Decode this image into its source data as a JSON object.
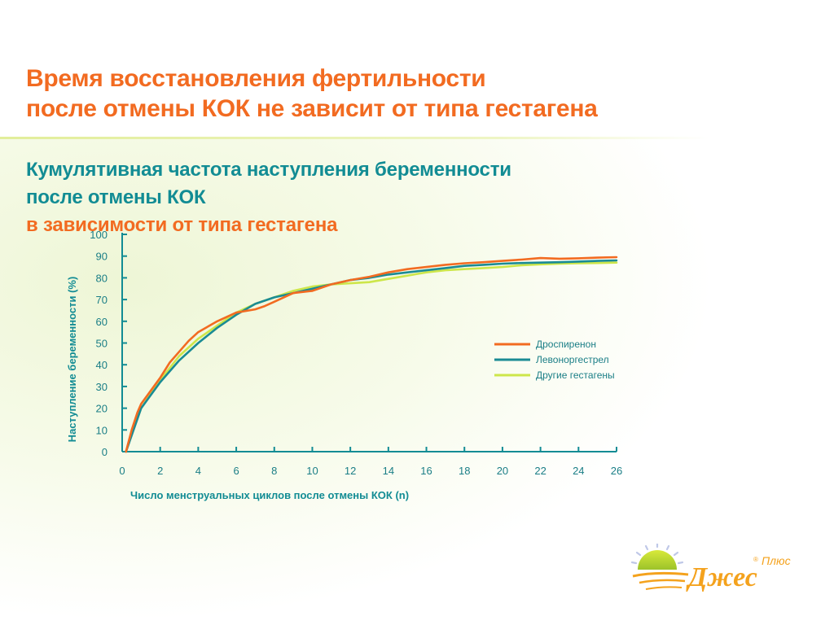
{
  "header": {
    "title_line1": "Время восстановления фертильности",
    "title_line2": "после отмены КОК не зависит от типа гестагена",
    "subtitle_line1": "Кумулятивная частота наступления беременности",
    "subtitle_line2_teal": "после отмены КОК",
    "subtitle_line2_orange": "в зависимости от типа гестагена"
  },
  "colors": {
    "title": "#f26b21",
    "subtitle": "#128c94",
    "drospirenone": "#f26b21",
    "levonorgestrel": "#1a8b94",
    "other": "#cde64a"
  },
  "chart_data": {
    "type": "line",
    "xlabel": "Число менструальных циклов после отмены КОК (n)",
    "ylabel": "Наступление беременности (%)",
    "xlim": [
      0,
      26
    ],
    "ylim": [
      0,
      100
    ],
    "xticks": [
      0,
      2,
      4,
      6,
      8,
      10,
      12,
      14,
      16,
      18,
      20,
      22,
      24,
      26
    ],
    "yticks": [
      0,
      10,
      20,
      30,
      40,
      50,
      60,
      70,
      80,
      90,
      100
    ],
    "grid": false,
    "legend": "right",
    "series": [
      {
        "name": "Дроспиренон",
        "color": "#f26b21",
        "x": [
          0.2,
          0.5,
          0.8,
          1,
          2,
          2.5,
          3,
          3.5,
          4,
          5,
          6,
          7,
          7.5,
          8,
          9,
          10,
          11,
          12,
          13,
          14,
          15,
          16,
          17,
          18,
          19,
          20,
          21,
          22,
          23,
          24,
          25,
          26
        ],
        "values": [
          0,
          10,
          18,
          22,
          34,
          41,
          46,
          51,
          55,
          60,
          64,
          65.5,
          67,
          69,
          73,
          74,
          77,
          79,
          80.5,
          82.5,
          84,
          85,
          86,
          86.7,
          87.2,
          87.8,
          88.4,
          89.1,
          88.8,
          89,
          89.3,
          89.5
        ]
      },
      {
        "name": "Левоноргестрел",
        "color": "#1a8b94",
        "x": [
          0.2,
          1,
          2,
          3,
          4,
          5,
          6,
          7,
          8,
          9,
          10,
          11,
          12,
          13,
          14,
          15,
          16,
          17,
          18,
          19,
          20,
          21,
          22,
          23,
          24,
          25,
          26
        ],
        "values": [
          0,
          20,
          32,
          42,
          50,
          57,
          63,
          68,
          71,
          73,
          75,
          77,
          79,
          80,
          81.5,
          82.5,
          83.5,
          84.5,
          85.5,
          86,
          86.5,
          86.8,
          87,
          87.2,
          87.5,
          87.8,
          88
        ]
      },
      {
        "name": "Другие гестагены",
        "color": "#cde64a",
        "x": [
          0.2,
          0.5,
          1,
          2,
          3,
          4,
          5,
          6,
          7,
          8,
          9,
          10,
          11,
          12,
          13,
          14,
          15,
          16,
          17,
          18,
          19,
          20,
          21,
          22,
          23,
          24,
          25,
          26
        ],
        "values": [
          0,
          8,
          20,
          33,
          44,
          52,
          58,
          64,
          68,
          71,
          74,
          76,
          77,
          77.5,
          78,
          79.5,
          81,
          82.5,
          83.5,
          84,
          84.5,
          85,
          85.8,
          86.2,
          86.5,
          86.7,
          86.8,
          87
        ]
      }
    ]
  }
}
